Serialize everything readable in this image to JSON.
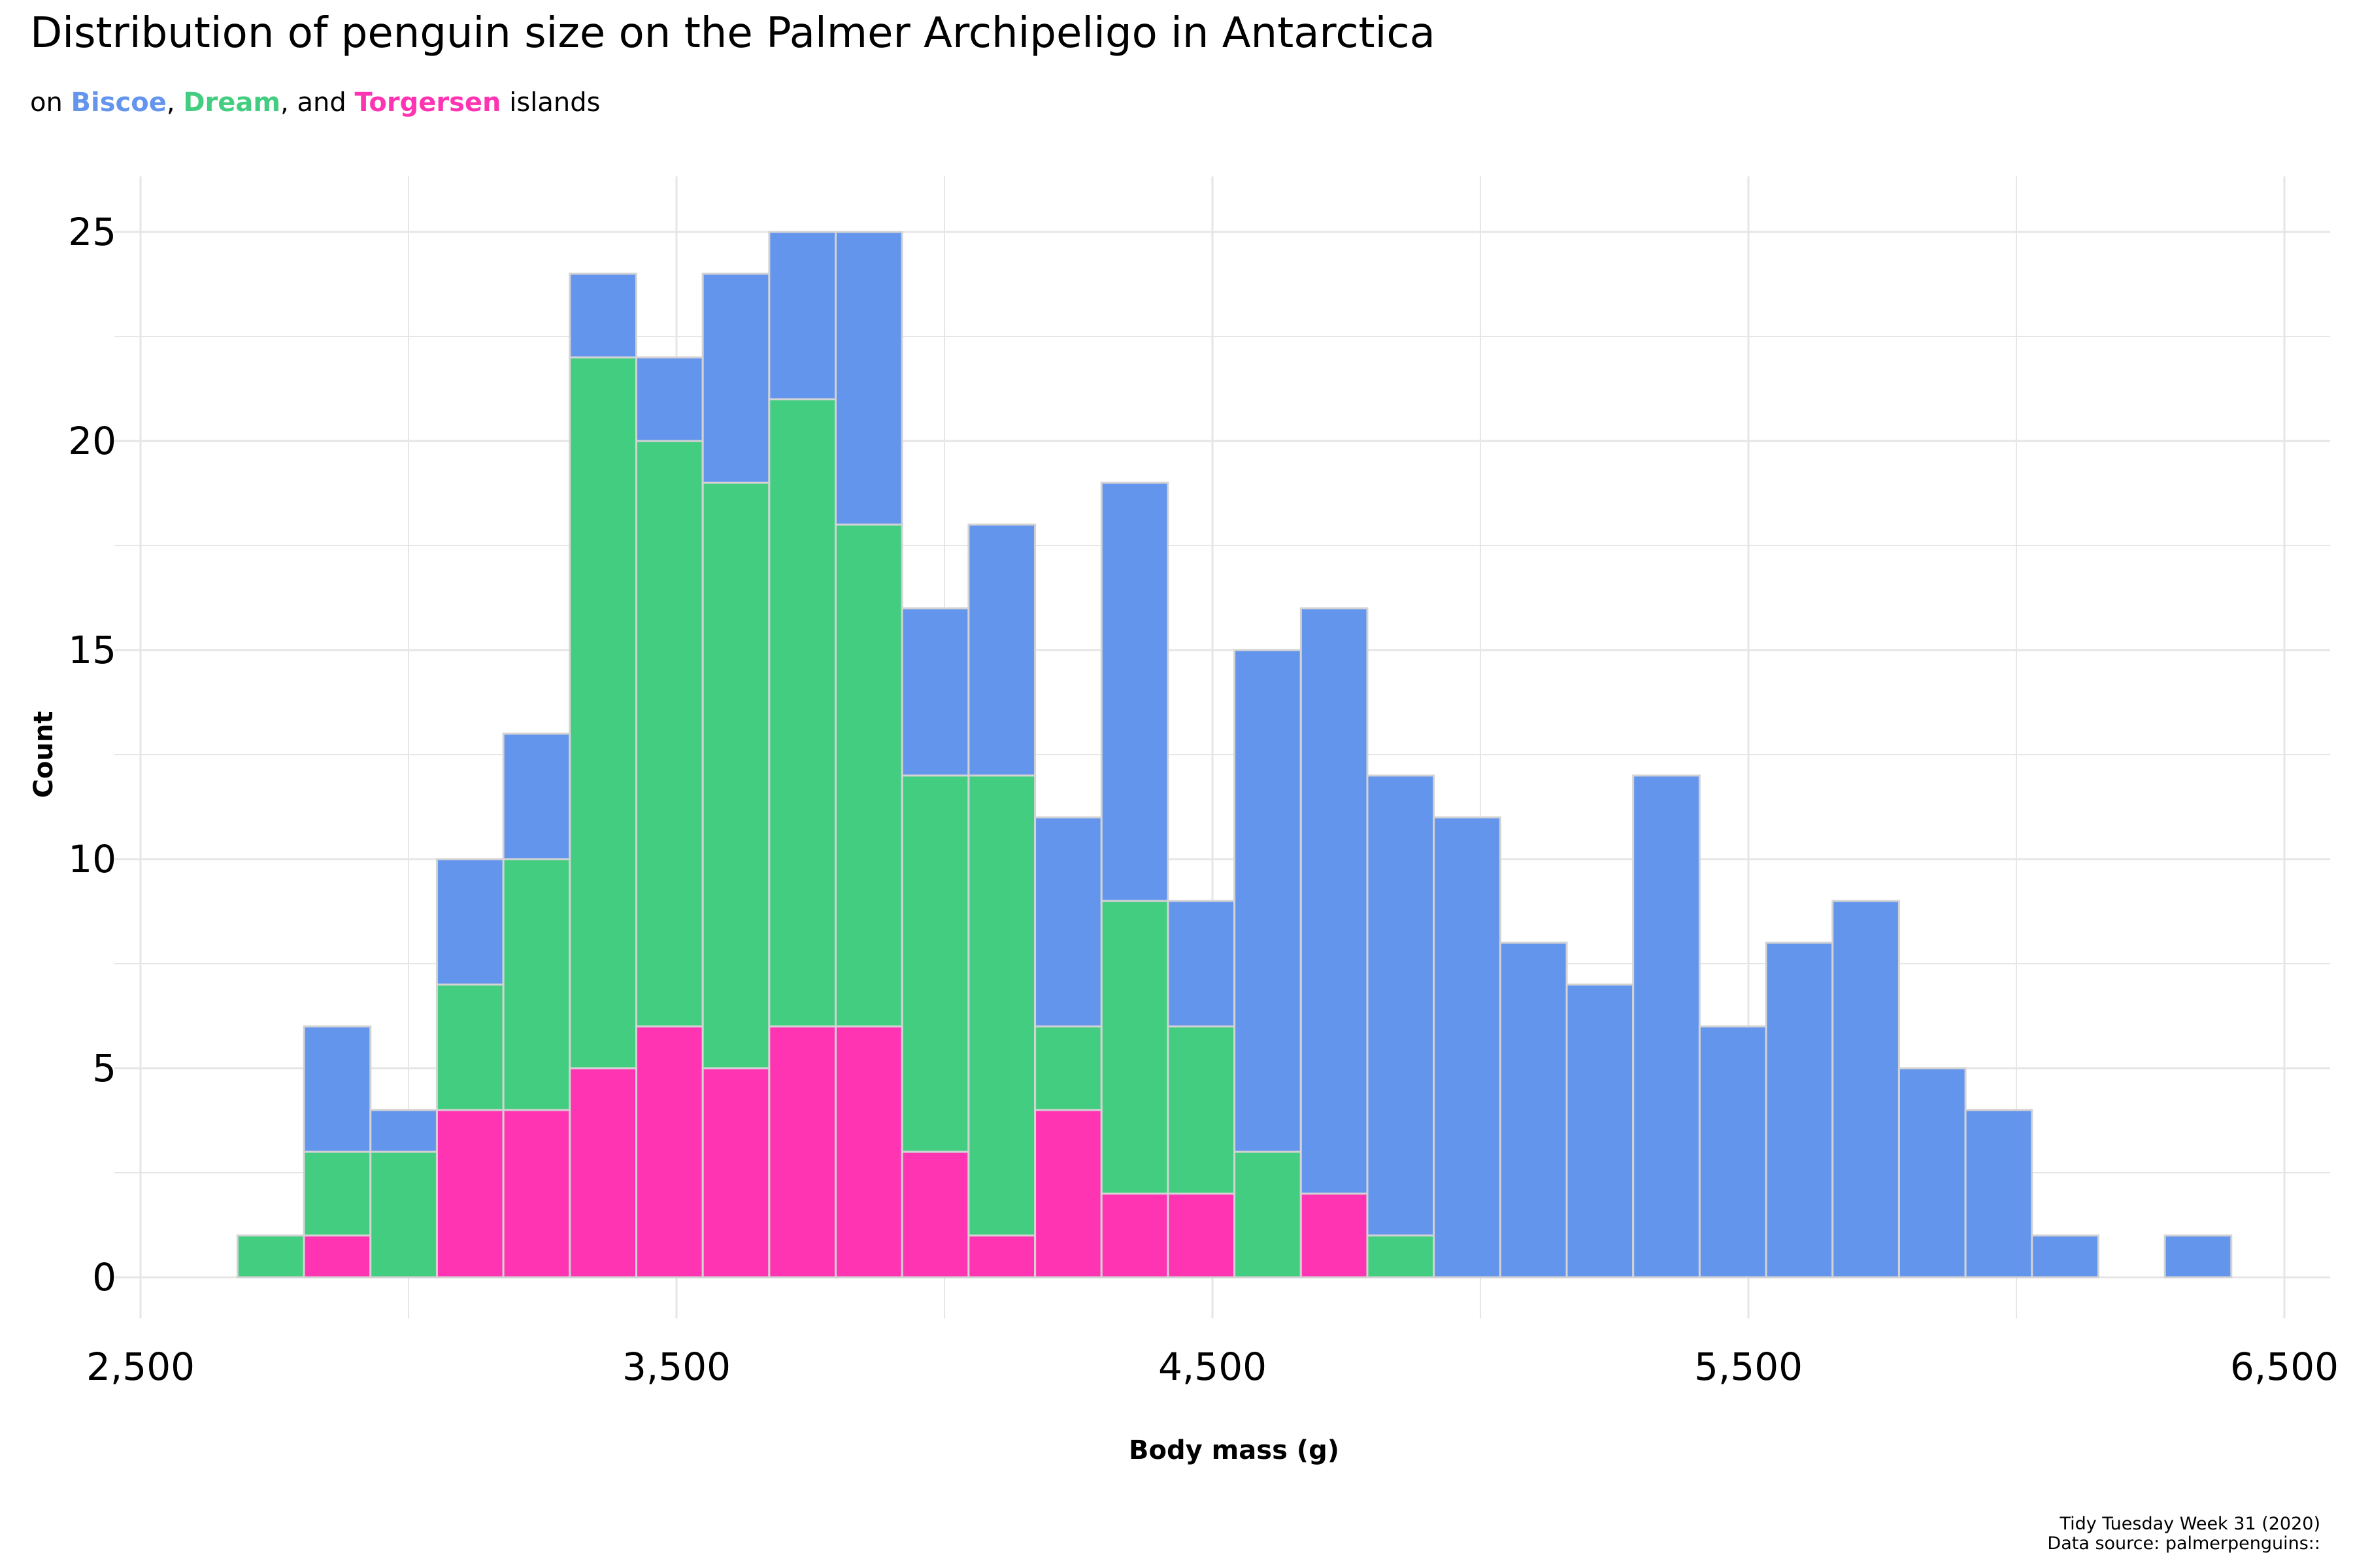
{
  "title": "Distribution of penguin size on the Palmer Archipeligo in Antarctica",
  "subtitle": {
    "prefix": "on ",
    "island1": "Biscoe",
    "sep1": ", ",
    "island2": "Dream",
    "sep2": ", and ",
    "island3": "Torgersen",
    "suffix": " islands"
  },
  "caption": {
    "line1": "Tidy Tuesday Week 31 (2020)",
    "line2": "Data source: palmerpenguins::"
  },
  "colors": {
    "Biscoe": "#6495ED",
    "Dream": "#43CD80",
    "Torgersen": "#FF34B3",
    "bar_outline": "#d3d3d3",
    "grid": "#e6e6e6"
  },
  "chart_data": {
    "type": "bar",
    "stacked": true,
    "xlabel": "Body mass (g)",
    "ylabel": "Count",
    "xlim": [
      2500,
      6500
    ],
    "ylim": [
      0,
      25
    ],
    "x_ticks": [
      "2,500",
      "3,500",
      "4,500",
      "5,500",
      "6,500"
    ],
    "x_tick_values": [
      2500,
      3500,
      4500,
      5500,
      6500
    ],
    "y_ticks": [
      "0",
      "5",
      "10",
      "15",
      "20",
      "25"
    ],
    "y_tick_values": [
      0,
      5,
      10,
      15,
      20,
      25
    ],
    "grid": true,
    "bin_width": 124,
    "bin_centers": [
      2743,
      2867,
      2991,
      3115,
      3239,
      3363,
      3487,
      3611,
      3735,
      3859,
      3983,
      4107,
      4231,
      4355,
      4479,
      4603,
      4727,
      4851,
      4975,
      5099,
      5223,
      5347,
      5471,
      5595,
      5719,
      5843,
      5967,
      6091,
      6215,
      6339
    ],
    "series": [
      {
        "name": "Torgersen",
        "values": [
          0,
          1,
          0,
          4,
          4,
          5,
          6,
          5,
          6,
          6,
          3,
          1,
          4,
          2,
          2,
          0,
          2,
          0,
          0,
          0,
          0,
          0,
          0,
          0,
          0,
          0,
          0,
          0,
          0,
          0
        ]
      },
      {
        "name": "Dream",
        "values": [
          1,
          2,
          3,
          3,
          6,
          17,
          14,
          14,
          15,
          12,
          9,
          11,
          2,
          7,
          4,
          3,
          0,
          1,
          0,
          0,
          0,
          0,
          0,
          0,
          0,
          0,
          0,
          0,
          0,
          0
        ]
      },
      {
        "name": "Biscoe",
        "values": [
          0,
          3,
          1,
          3,
          3,
          2,
          2,
          5,
          4,
          7,
          4,
          6,
          5,
          10,
          3,
          12,
          14,
          11,
          11,
          8,
          7,
          12,
          6,
          8,
          9,
          5,
          4,
          1,
          0,
          1
        ]
      }
    ]
  }
}
